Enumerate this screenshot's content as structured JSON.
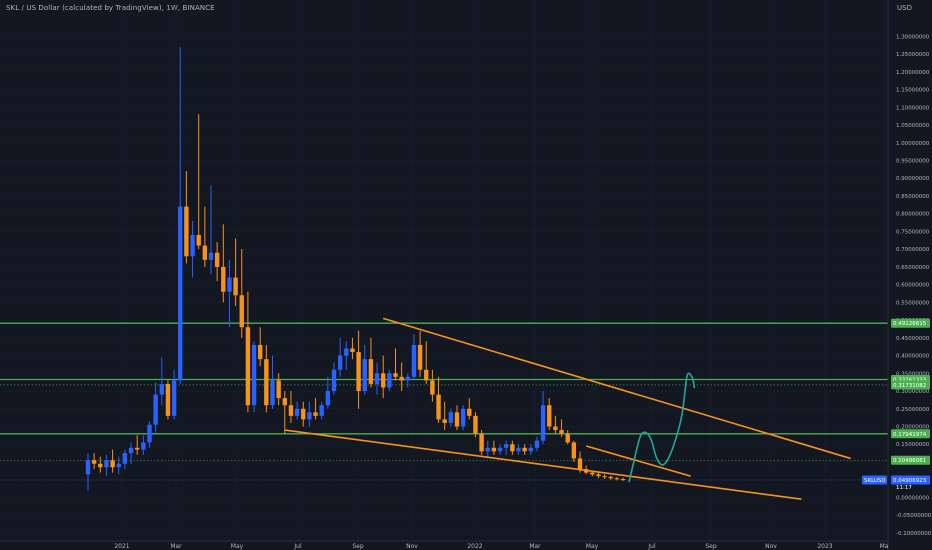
{
  "header": {
    "title": "SKL / US Dollar (calculated by TradingView), 1W, BINANCE",
    "currency": "USD"
  },
  "colors": {
    "background": "#131722",
    "candle_up": "#2962ff",
    "candle_down": "#f7931a",
    "support_line": "#4caf50",
    "trendline": "#f7931a",
    "projection": "#26a69a",
    "price_tag": "#2962ff"
  },
  "chart_data": {
    "type": "candlestick",
    "title": "SKL / US Dollar (calculated by TradingView), 1W, BINANCE",
    "yaxis": {
      "label": "USD",
      "ylim": [
        -0.12,
        1.38
      ],
      "ticks": [
        "1.30000000",
        "1.25000000",
        "1.20000000",
        "1.15000000",
        "1.10000000",
        "1.05000000",
        "1.00000000",
        "0.95000000",
        "0.90000000",
        "0.85000000",
        "0.80000000",
        "0.75000000",
        "0.70000000",
        "0.65000000",
        "0.60000000",
        "0.55000000",
        "0.50000000",
        "0.45000000",
        "0.40000000",
        "0.35000000",
        "0.30000000",
        "0.25000000",
        "0.20000000",
        "0.15000000",
        "0.10000000",
        "0.05000000",
        "0.00000000",
        "-0.05000000",
        "-0.10000000"
      ]
    },
    "xaxis": {
      "ticks": [
        "2021",
        "Mar",
        "May",
        "Jul",
        "Sep",
        "Nov",
        "2022",
        "Mar",
        "May",
        "Jul",
        "Sep",
        "Nov",
        "2023",
        "Ma"
      ]
    },
    "candles": [
      {
        "o": 0.065,
        "h": 0.125,
        "l": 0.02,
        "c": 0.105
      },
      {
        "o": 0.105,
        "h": 0.125,
        "l": 0.08,
        "c": 0.095
      },
      {
        "o": 0.095,
        "h": 0.115,
        "l": 0.07,
        "c": 0.085
      },
      {
        "o": 0.085,
        "h": 0.12,
        "l": 0.06,
        "c": 0.105
      },
      {
        "o": 0.105,
        "h": 0.135,
        "l": 0.07,
        "c": 0.085
      },
      {
        "o": 0.085,
        "h": 0.115,
        "l": 0.065,
        "c": 0.095
      },
      {
        "o": 0.095,
        "h": 0.135,
        "l": 0.08,
        "c": 0.125
      },
      {
        "o": 0.125,
        "h": 0.155,
        "l": 0.095,
        "c": 0.14
      },
      {
        "o": 0.14,
        "h": 0.175,
        "l": 0.12,
        "c": 0.135
      },
      {
        "o": 0.135,
        "h": 0.175,
        "l": 0.12,
        "c": 0.155
      },
      {
        "o": 0.155,
        "h": 0.215,
        "l": 0.14,
        "c": 0.205
      },
      {
        "o": 0.205,
        "h": 0.325,
        "l": 0.18,
        "c": 0.29
      },
      {
        "o": 0.29,
        "h": 0.395,
        "l": 0.26,
        "c": 0.32
      },
      {
        "o": 0.32,
        "h": 0.33,
        "l": 0.22,
        "c": 0.23
      },
      {
        "o": 0.23,
        "h": 0.36,
        "l": 0.22,
        "c": 0.33
      },
      {
        "o": 0.33,
        "h": 1.27,
        "l": 0.32,
        "c": 0.82
      },
      {
        "o": 0.82,
        "h": 0.92,
        "l": 0.66,
        "c": 0.68
      },
      {
        "o": 0.68,
        "h": 0.78,
        "l": 0.62,
        "c": 0.74
      },
      {
        "o": 0.74,
        "h": 1.08,
        "l": 0.7,
        "c": 0.71
      },
      {
        "o": 0.71,
        "h": 0.82,
        "l": 0.65,
        "c": 0.67
      },
      {
        "o": 0.67,
        "h": 0.88,
        "l": 0.63,
        "c": 0.69
      },
      {
        "o": 0.69,
        "h": 0.72,
        "l": 0.61,
        "c": 0.65
      },
      {
        "o": 0.65,
        "h": 0.77,
        "l": 0.55,
        "c": 0.58
      },
      {
        "o": 0.58,
        "h": 0.67,
        "l": 0.48,
        "c": 0.62
      },
      {
        "o": 0.62,
        "h": 0.73,
        "l": 0.54,
        "c": 0.57
      },
      {
        "o": 0.57,
        "h": 0.7,
        "l": 0.45,
        "c": 0.48
      },
      {
        "o": 0.48,
        "h": 0.58,
        "l": 0.24,
        "c": 0.26
      },
      {
        "o": 0.26,
        "h": 0.44,
        "l": 0.24,
        "c": 0.43
      },
      {
        "o": 0.43,
        "h": 0.48,
        "l": 0.37,
        "c": 0.39
      },
      {
        "o": 0.39,
        "h": 0.43,
        "l": 0.24,
        "c": 0.26
      },
      {
        "o": 0.26,
        "h": 0.4,
        "l": 0.25,
        "c": 0.33
      },
      {
        "o": 0.33,
        "h": 0.35,
        "l": 0.26,
        "c": 0.28
      },
      {
        "o": 0.28,
        "h": 0.3,
        "l": 0.18,
        "c": 0.26
      },
      {
        "o": 0.26,
        "h": 0.3,
        "l": 0.21,
        "c": 0.23
      },
      {
        "o": 0.23,
        "h": 0.27,
        "l": 0.22,
        "c": 0.25
      },
      {
        "o": 0.25,
        "h": 0.27,
        "l": 0.2,
        "c": 0.22
      },
      {
        "o": 0.22,
        "h": 0.27,
        "l": 0.2,
        "c": 0.24
      },
      {
        "o": 0.24,
        "h": 0.28,
        "l": 0.22,
        "c": 0.23
      },
      {
        "o": 0.23,
        "h": 0.27,
        "l": 0.22,
        "c": 0.26
      },
      {
        "o": 0.26,
        "h": 0.34,
        "l": 0.25,
        "c": 0.3
      },
      {
        "o": 0.3,
        "h": 0.38,
        "l": 0.29,
        "c": 0.36
      },
      {
        "o": 0.36,
        "h": 0.45,
        "l": 0.34,
        "c": 0.4
      },
      {
        "o": 0.4,
        "h": 0.44,
        "l": 0.36,
        "c": 0.42
      },
      {
        "o": 0.42,
        "h": 0.45,
        "l": 0.39,
        "c": 0.41
      },
      {
        "o": 0.41,
        "h": 0.47,
        "l": 0.25,
        "c": 0.3
      },
      {
        "o": 0.3,
        "h": 0.43,
        "l": 0.29,
        "c": 0.39
      },
      {
        "o": 0.39,
        "h": 0.45,
        "l": 0.31,
        "c": 0.32
      },
      {
        "o": 0.32,
        "h": 0.38,
        "l": 0.29,
        "c": 0.35
      },
      {
        "o": 0.35,
        "h": 0.4,
        "l": 0.28,
        "c": 0.31
      },
      {
        "o": 0.31,
        "h": 0.36,
        "l": 0.3,
        "c": 0.35
      },
      {
        "o": 0.35,
        "h": 0.42,
        "l": 0.33,
        "c": 0.34
      },
      {
        "o": 0.34,
        "h": 0.38,
        "l": 0.3,
        "c": 0.33
      },
      {
        "o": 0.33,
        "h": 0.35,
        "l": 0.31,
        "c": 0.34
      },
      {
        "o": 0.34,
        "h": 0.46,
        "l": 0.33,
        "c": 0.43
      },
      {
        "o": 0.43,
        "h": 0.47,
        "l": 0.34,
        "c": 0.36
      },
      {
        "o": 0.36,
        "h": 0.44,
        "l": 0.32,
        "c": 0.33
      },
      {
        "o": 0.33,
        "h": 0.36,
        "l": 0.27,
        "c": 0.29
      },
      {
        "o": 0.29,
        "h": 0.34,
        "l": 0.21,
        "c": 0.22
      },
      {
        "o": 0.22,
        "h": 0.27,
        "l": 0.19,
        "c": 0.21
      },
      {
        "o": 0.21,
        "h": 0.25,
        "l": 0.2,
        "c": 0.24
      },
      {
        "o": 0.24,
        "h": 0.26,
        "l": 0.19,
        "c": 0.2
      },
      {
        "o": 0.2,
        "h": 0.26,
        "l": 0.19,
        "c": 0.25
      },
      {
        "o": 0.25,
        "h": 0.28,
        "l": 0.22,
        "c": 0.23
      },
      {
        "o": 0.23,
        "h": 0.24,
        "l": 0.17,
        "c": 0.18
      },
      {
        "o": 0.18,
        "h": 0.19,
        "l": 0.12,
        "c": 0.13
      },
      {
        "o": 0.13,
        "h": 0.16,
        "l": 0.11,
        "c": 0.14
      },
      {
        "o": 0.14,
        "h": 0.16,
        "l": 0.12,
        "c": 0.13
      },
      {
        "o": 0.13,
        "h": 0.15,
        "l": 0.12,
        "c": 0.14
      },
      {
        "o": 0.14,
        "h": 0.16,
        "l": 0.12,
        "c": 0.15
      },
      {
        "o": 0.15,
        "h": 0.16,
        "l": 0.12,
        "c": 0.13
      },
      {
        "o": 0.13,
        "h": 0.15,
        "l": 0.12,
        "c": 0.14
      },
      {
        "o": 0.14,
        "h": 0.15,
        "l": 0.12,
        "c": 0.13
      },
      {
        "o": 0.13,
        "h": 0.15,
        "l": 0.12,
        "c": 0.14
      },
      {
        "o": 0.14,
        "h": 0.17,
        "l": 0.13,
        "c": 0.16
      },
      {
        "o": 0.16,
        "h": 0.3,
        "l": 0.15,
        "c": 0.26
      },
      {
        "o": 0.26,
        "h": 0.28,
        "l": 0.19,
        "c": 0.2
      },
      {
        "o": 0.2,
        "h": 0.23,
        "l": 0.18,
        "c": 0.19
      },
      {
        "o": 0.19,
        "h": 0.22,
        "l": 0.17,
        "c": 0.18
      },
      {
        "o": 0.18,
        "h": 0.19,
        "l": 0.15,
        "c": 0.155
      },
      {
        "o": 0.155,
        "h": 0.16,
        "l": 0.1,
        "c": 0.11
      },
      {
        "o": 0.11,
        "h": 0.13,
        "l": 0.07,
        "c": 0.08
      },
      {
        "o": 0.08,
        "h": 0.09,
        "l": 0.065,
        "c": 0.07
      },
      {
        "o": 0.07,
        "h": 0.075,
        "l": 0.06,
        "c": 0.065
      },
      {
        "o": 0.065,
        "h": 0.07,
        "l": 0.055,
        "c": 0.06
      },
      {
        "o": 0.06,
        "h": 0.065,
        "l": 0.052,
        "c": 0.058
      },
      {
        "o": 0.058,
        "h": 0.062,
        "l": 0.05,
        "c": 0.054
      },
      {
        "o": 0.054,
        "h": 0.058,
        "l": 0.048,
        "c": 0.052
      },
      {
        "o": 0.052,
        "h": 0.056,
        "l": 0.046,
        "c": 0.05
      }
    ],
    "support_lines": [
      {
        "value": 0.49126615,
        "label": "0.49126615"
      },
      {
        "value": 0.33261333,
        "label": "0.33261333"
      },
      {
        "value": 0.17941974,
        "label": "0.17941974"
      }
    ],
    "dotted_levels": [
      {
        "value": 0.31731082,
        "label": "0.31731082",
        "color": "#4caf50"
      },
      {
        "value": 0.10486081,
        "label": "0.10486081",
        "color": "#4caf50"
      }
    ],
    "current_price": {
      "symbol": "SKLUSD",
      "value": "0.04906923",
      "countdown": "11:17"
    },
    "trendlines": [
      {
        "from": {
          "i": 48,
          "v": 0.505
        },
        "to": {
          "i": 124,
          "v": 0.11
        }
      },
      {
        "from": {
          "i": 32,
          "v": 0.19
        },
        "to": {
          "i": 116,
          "v": -0.005
        }
      },
      {
        "from": {
          "i": 81,
          "v": 0.145
        },
        "to": {
          "i": 98,
          "v": 0.06
        }
      }
    ],
    "projection_path": [
      {
        "i": 88,
        "v": 0.045
      },
      {
        "i": 89,
        "v": 0.12
      },
      {
        "i": 90,
        "v": 0.19
      },
      {
        "i": 91.5,
        "v": 0.175
      },
      {
        "i": 92.5,
        "v": 0.1
      },
      {
        "i": 94,
        "v": 0.085
      },
      {
        "i": 96.5,
        "v": 0.21
      },
      {
        "i": 97.2,
        "v": 0.32
      },
      {
        "i": 97.5,
        "v": 0.355
      },
      {
        "i": 98.3,
        "v": 0.34
      },
      {
        "i": 98.6,
        "v": 0.31
      }
    ]
  }
}
